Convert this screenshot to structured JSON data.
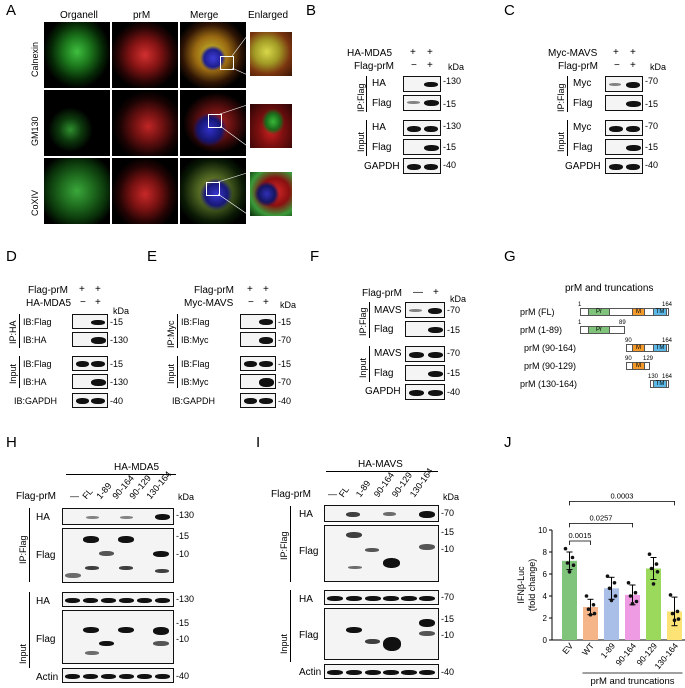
{
  "panels": {
    "A": "A",
    "B": "B",
    "C": "C",
    "D": "D",
    "E": "E",
    "F": "F",
    "G": "G",
    "H": "H",
    "I": "I",
    "J": "J"
  },
  "A": {
    "columns": [
      "Organell",
      "prM",
      "Merge",
      "Enlarged"
    ],
    "rows": [
      "Calnexin",
      "GM130",
      "CoXIV"
    ]
  },
  "B": {
    "row1": "HA-MDA5",
    "row2": "Flag-prM",
    "plus": "+",
    "minus": "−",
    "kda": "kDa",
    "ip": "IP:Flag",
    "input": "Input",
    "labels": [
      "HA",
      "Flag",
      "HA",
      "Flag",
      "GAPDH"
    ],
    "mw": [
      "130",
      "15",
      "130",
      "15",
      "40"
    ]
  },
  "C": {
    "row1": "Myc-MAVS",
    "row2": "Flag-prM",
    "plus": "+",
    "minus": "−",
    "kda": "kDa",
    "ip": "IP:Flag",
    "input": "Input",
    "labels": [
      "Myc",
      "Flag",
      "Myc",
      "Flag",
      "GAPDH"
    ],
    "mw": [
      "70",
      "15",
      "70",
      "15",
      "40"
    ]
  },
  "D": {
    "row1": "Flag-prM",
    "row2": "HA-MDA5",
    "plus": "+",
    "minus": "−",
    "kda": "kDa",
    "ip": "IP:HA",
    "input": "Input",
    "labels": [
      "IB:Flag",
      "IB:HA",
      "IB:Flag",
      "IB:HA",
      "IB:GAPDH"
    ],
    "mw": [
      "15",
      "130",
      "15",
      "130",
      "40"
    ]
  },
  "E": {
    "row1": "Flag-prM",
    "row2": "Myc-MAVS",
    "plus": "+",
    "minus": "−",
    "kda": "kDa",
    "ip": "IP:Myc",
    "input": "Input",
    "labels": [
      "IB:Flag",
      "IB:Myc",
      "IB:Flag",
      "IB:Myc",
      "IB:GAPDH"
    ],
    "mw": [
      "15",
      "70",
      "15",
      "70",
      "40"
    ]
  },
  "F": {
    "row1": "Flag-prM",
    "plus": "+",
    "minus": "—",
    "kda": "kDa",
    "ip": "IP:Flag",
    "input": "Input",
    "labels": [
      "MAVS",
      "Flag",
      "MAVS",
      "Flag",
      "GAPDH"
    ],
    "mw": [
      "70",
      "15",
      "70",
      "15",
      "40"
    ]
  },
  "G": {
    "title": "prM and truncations",
    "constructs": [
      "prM (FL)",
      "prM (1-89)",
      "prM (90-164)",
      "prM (90-129)",
      "prM (130-164)"
    ],
    "nums": {
      "fl_start": "1",
      "fl_end": "164",
      "t1_start": "1",
      "t1_end": "89",
      "t2_start": "90",
      "t2_end": "164",
      "t3_start": "90",
      "t3_end": "129",
      "t4_start": "130",
      "t4_end": "164"
    },
    "domains": {
      "pr": "Pr",
      "m": "M",
      "tm": "TM"
    },
    "colors": {
      "pr": "#7fc47a",
      "m": "#f39a2b",
      "tm": "#5bb7e6"
    }
  },
  "H": {
    "header": "HA-MDA5",
    "row": "Flag-prM",
    "lanes": [
      "—",
      "FL",
      "1-89",
      "90-164",
      "90-129",
      "130-164"
    ],
    "kda": "kDa",
    "ip": "IP:Flag",
    "input": "Input",
    "labels": [
      "HA",
      "Flag",
      "HA",
      "Flag",
      "Actin"
    ],
    "mw": [
      "130",
      "15",
      "10",
      "130",
      "15",
      "10",
      "40"
    ]
  },
  "I": {
    "header": "HA-MAVS",
    "row": "Flag-prM",
    "lanes": [
      "—",
      "FL",
      "1-89",
      "90-164",
      "90-129",
      "130-164"
    ],
    "kda": "kDa",
    "ip": "IP:Flag",
    "input": "Input",
    "labels": [
      "HA",
      "Flag",
      "HA",
      "Flag",
      "Actin"
    ],
    "mw": [
      "70",
      "15",
      "10",
      "70",
      "15",
      "10",
      "40"
    ]
  },
  "chart_data": {
    "type": "bar",
    "categories": [
      "EV",
      "WT",
      "1-89",
      "90-164",
      "90-129",
      "130-164"
    ],
    "values": [
      7.2,
      3.0,
      4.7,
      4.1,
      6.5,
      2.6
    ],
    "errors": [
      0.8,
      0.7,
      1.0,
      0.9,
      1.0,
      1.3
    ],
    "points": [
      [
        8.3,
        7.5,
        7.0,
        6.8,
        6.2
      ],
      [
        4.0,
        3.2,
        2.8,
        2.4,
        2.3
      ],
      [
        5.8,
        5.2,
        4.7,
        4.0,
        3.6
      ],
      [
        5.2,
        4.3,
        4.0,
        3.5,
        3.3
      ],
      [
        7.8,
        6.9,
        6.5,
        6.2,
        5.1
      ],
      [
        4.1,
        2.6,
        2.4,
        1.9,
        1.8
      ]
    ],
    "colors": [
      "#7fc47a",
      "#f6b489",
      "#a9bfe8",
      "#ef9be3",
      "#9bd95c",
      "#fde376"
    ],
    "ylabel": "IFNβ-Luc\n(fold change)",
    "ylabel_line1": "IFNβ-Luc",
    "ylabel_line2": "(fold change)",
    "ylim": [
      0,
      10
    ],
    "yticks": [
      0,
      2,
      4,
      6,
      8,
      10
    ],
    "xlabel": "prM and truncations",
    "pvalues": [
      "0.0015",
      "0.0257",
      "0.0003"
    ],
    "grid": false
  }
}
